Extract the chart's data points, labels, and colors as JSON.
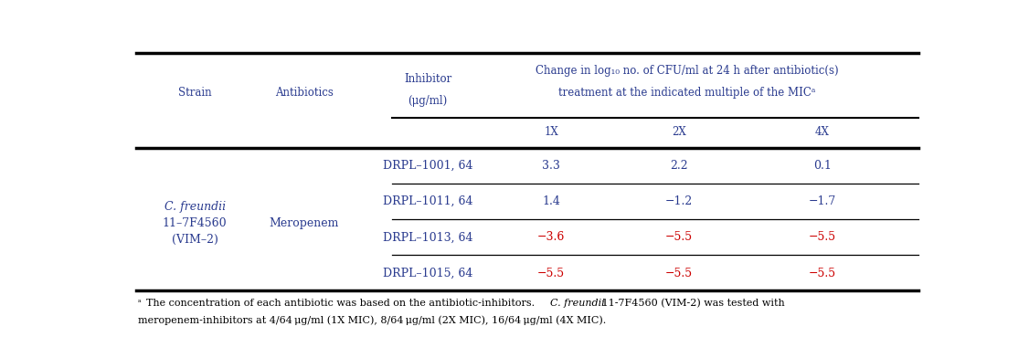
{
  "col_x": {
    "strain": 0.083,
    "antibiotic": 0.22,
    "inhibitor": 0.375,
    "v1": 0.53,
    "v2": 0.69,
    "v3": 0.87
  },
  "rows": [
    {
      "inhibitor": "DRPL–1001, 64",
      "v1": "3.3",
      "v2": "2.2",
      "v3": "0.1",
      "red": [
        false,
        false,
        false
      ]
    },
    {
      "inhibitor": "DRPL–1011, 64",
      "v1": "1.4",
      "v2": "−1.2",
      "v3": "−1.7",
      "red": [
        false,
        false,
        false
      ]
    },
    {
      "inhibitor": "DRPL–1013, 64",
      "v1": "−3.6",
      "v2": "−5.5",
      "v3": "−5.5",
      "red": [
        true,
        true,
        true
      ]
    },
    {
      "inhibitor": "DRPL–1015, 64",
      "v1": "−5.5",
      "v2": "−5.5",
      "v3": "−5.5",
      "red": [
        true,
        true,
        true
      ]
    }
  ],
  "blue": "#2a3b8f",
  "red": "#cc0000",
  "black": "#000000",
  "white": "#ffffff"
}
